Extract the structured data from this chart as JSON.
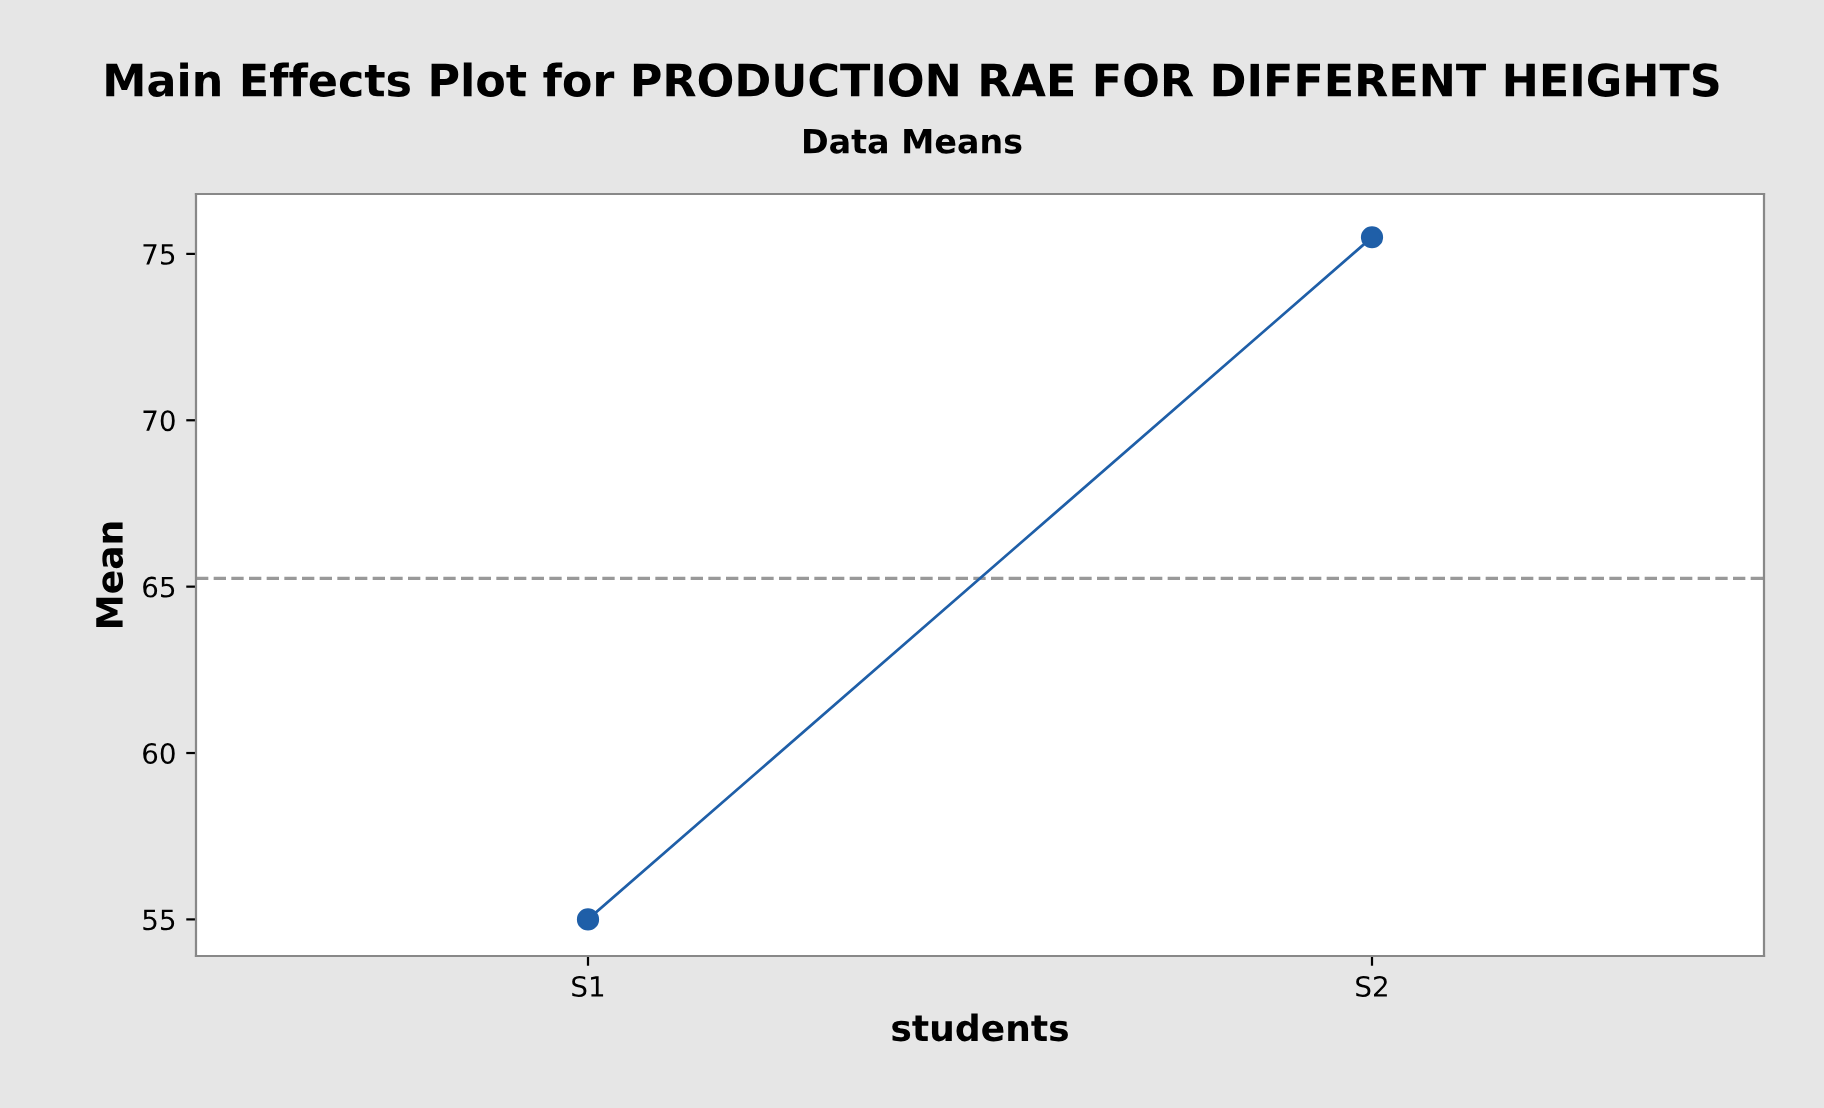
{
  "chart_data": {
    "type": "line",
    "title": "Main Effects Plot for PRODUCTION RAE FOR DIFFERENT HEIGHTS",
    "subtitle": "Data Means",
    "xlabel": "students",
    "ylabel": "Mean",
    "categories": [
      "S1",
      "S2"
    ],
    "series": [
      {
        "color": "#1f5fa8",
        "values": [
          55.0,
          75.5
        ]
      }
    ],
    "marker": "circle",
    "line_style": "solid",
    "ylim": [
      53.9,
      76.8
    ],
    "yticks": [
      55,
      60,
      65,
      70,
      75
    ],
    "ref_lines": [
      {
        "axis": "y",
        "value": 65.25,
        "color": "#999999",
        "line_style": "dashed"
      }
    ],
    "grid": false,
    "legend": false
  }
}
